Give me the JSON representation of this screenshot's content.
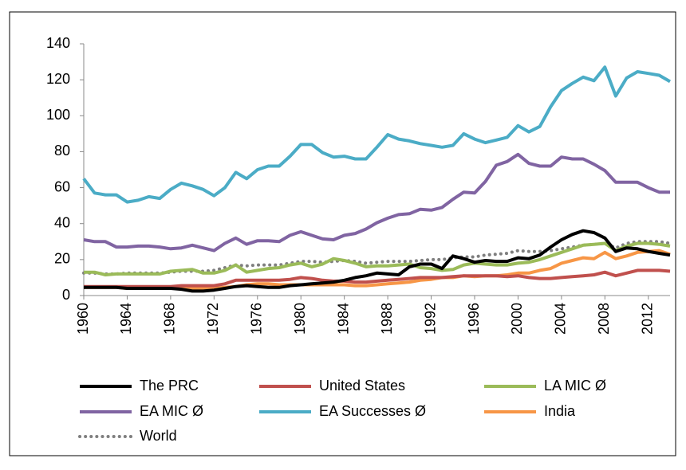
{
  "chart_data": {
    "type": "line",
    "x": [
      1960,
      1961,
      1962,
      1963,
      1964,
      1965,
      1966,
      1967,
      1968,
      1969,
      1970,
      1971,
      1972,
      1973,
      1974,
      1975,
      1976,
      1977,
      1978,
      1979,
      1980,
      1981,
      1982,
      1983,
      1984,
      1985,
      1986,
      1987,
      1988,
      1989,
      1990,
      1991,
      1992,
      1993,
      1994,
      1995,
      1996,
      1997,
      1998,
      1999,
      2000,
      2001,
      2002,
      2003,
      2004,
      2005,
      2006,
      2007,
      2008,
      2009,
      2010,
      2011,
      2012,
      2013,
      2014
    ],
    "xlim": [
      1960,
      2014
    ],
    "xticks": [
      1960,
      1964,
      1968,
      1972,
      1976,
      1980,
      1984,
      1988,
      1992,
      1996,
      2000,
      2004,
      2008,
      2012
    ],
    "ylim": [
      0,
      140
    ],
    "yticks": [
      0,
      20,
      40,
      60,
      80,
      100,
      120,
      140
    ],
    "series": [
      {
        "name": "The PRC",
        "color": "#000000",
        "values": [
          4.5,
          4.5,
          4.5,
          4.5,
          4,
          4,
          4,
          4,
          4,
          3.5,
          2.5,
          2.5,
          3,
          4,
          5,
          5.5,
          5,
          4.5,
          4.5,
          5.5,
          6,
          6.5,
          7,
          7.5,
          8.5,
          10,
          11,
          12.5,
          12,
          11.5,
          16,
          17.5,
          17.5,
          15,
          22,
          20.5,
          18.5,
          19.5,
          19,
          19,
          21,
          20.5,
          22.5,
          27,
          31,
          34,
          36,
          35,
          32,
          24.5,
          26.5,
          26,
          24.5,
          23.5,
          22.5
        ]
      },
      {
        "name": "United States",
        "color": "#c0504d",
        "values": [
          5,
          5,
          5,
          5,
          5,
          5,
          5,
          5,
          5,
          5.5,
          5.5,
          5.5,
          5.5,
          6.5,
          8.5,
          8.5,
          8.5,
          8.5,
          8.5,
          9,
          10,
          9.5,
          8.5,
          8,
          8,
          7.5,
          7.5,
          8,
          8.5,
          9,
          9.5,
          10,
          10,
          10,
          10.5,
          11,
          11,
          11,
          11,
          10.5,
          11,
          10,
          9.5,
          9.5,
          10,
          10.5,
          11,
          11.5,
          13,
          11,
          12.5,
          14,
          14,
          14,
          13.5
        ]
      },
      {
        "name": "LA MIC Ø",
        "color": "#9bbb59",
        "values": [
          13,
          13,
          11.5,
          12,
          12,
          12,
          12,
          12,
          13.5,
          14,
          14.5,
          12.5,
          12.5,
          14,
          17,
          13,
          14,
          15,
          15.5,
          17,
          18,
          16,
          17.5,
          20.5,
          19.5,
          18,
          16,
          16.5,
          16.5,
          17,
          17.5,
          15.5,
          15,
          14,
          14.5,
          17,
          18,
          17.5,
          17,
          17,
          18,
          18.5,
          20,
          22,
          24,
          26,
          28,
          28.5,
          29,
          25,
          27.5,
          29,
          29,
          28.5,
          27.5
        ]
      },
      {
        "name": "EA MIC Ø",
        "color": "#8064a2",
        "values": [
          31,
          30,
          30,
          27,
          27,
          27.5,
          27.5,
          27,
          26,
          26.5,
          28,
          26.5,
          25,
          29,
          32,
          28.5,
          30.5,
          30.5,
          30,
          33.5,
          35.5,
          33.5,
          31.5,
          31,
          33.5,
          34.5,
          37,
          40.5,
          43,
          45,
          45.5,
          48,
          47.5,
          49,
          53.5,
          57.5,
          57,
          63.5,
          72.5,
          74.5,
          78.5,
          73.5,
          72,
          72,
          77,
          76,
          76,
          73,
          69.5,
          63,
          63,
          63,
          60,
          57.5,
          57.5
        ]
      },
      {
        "name": "EA Successes Ø",
        "color": "#4bacc6",
        "values": [
          65,
          57,
          56,
          56,
          52,
          53,
          55,
          54,
          59,
          62.5,
          61,
          59,
          55.5,
          60,
          68.5,
          65,
          70,
          72,
          72,
          77.5,
          84,
          84,
          79.5,
          77,
          77.5,
          76,
          76,
          82.5,
          89.5,
          87,
          86,
          84.5,
          83.5,
          82.5,
          83.5,
          90,
          87,
          85,
          86.5,
          88,
          94.5,
          91,
          94,
          105,
          114,
          118,
          121.5,
          119.5,
          127,
          111,
          121,
          124.5,
          123.5,
          122.5,
          119
        ]
      },
      {
        "name": "India",
        "color": "#f79646",
        "values": [
          4.5,
          4.5,
          4.5,
          4.5,
          4,
          4,
          4,
          4,
          4,
          4,
          4,
          4,
          4,
          4.5,
          5,
          6,
          6.5,
          6.5,
          6,
          6,
          6,
          6,
          6,
          6,
          6,
          5.5,
          5.5,
          6,
          6.5,
          7,
          7.5,
          8.5,
          9,
          10,
          10,
          11,
          10.5,
          11,
          11,
          11.5,
          12.5,
          12.5,
          14,
          15,
          18,
          19.5,
          21,
          20.5,
          24,
          20.5,
          22,
          24,
          24.5,
          25,
          23
        ]
      },
      {
        "name": "World",
        "color": "#7f7f7f",
        "style": "dotted",
        "values": [
          12.5,
          12.5,
          12,
          12,
          12.5,
          12.5,
          12.5,
          12.5,
          13,
          13.5,
          13.5,
          13.5,
          14,
          15.5,
          17,
          16.5,
          17,
          17,
          17,
          18,
          19,
          19,
          18.5,
          19,
          19.5,
          19,
          18,
          18.5,
          19,
          19,
          19,
          19.5,
          20,
          20,
          21,
          21.5,
          21.5,
          22.5,
          23,
          23.5,
          25,
          24.5,
          24.5,
          25,
          26,
          27,
          28,
          28.5,
          29,
          26.5,
          29,
          30,
          30,
          30,
          29
        ]
      }
    ]
  }
}
